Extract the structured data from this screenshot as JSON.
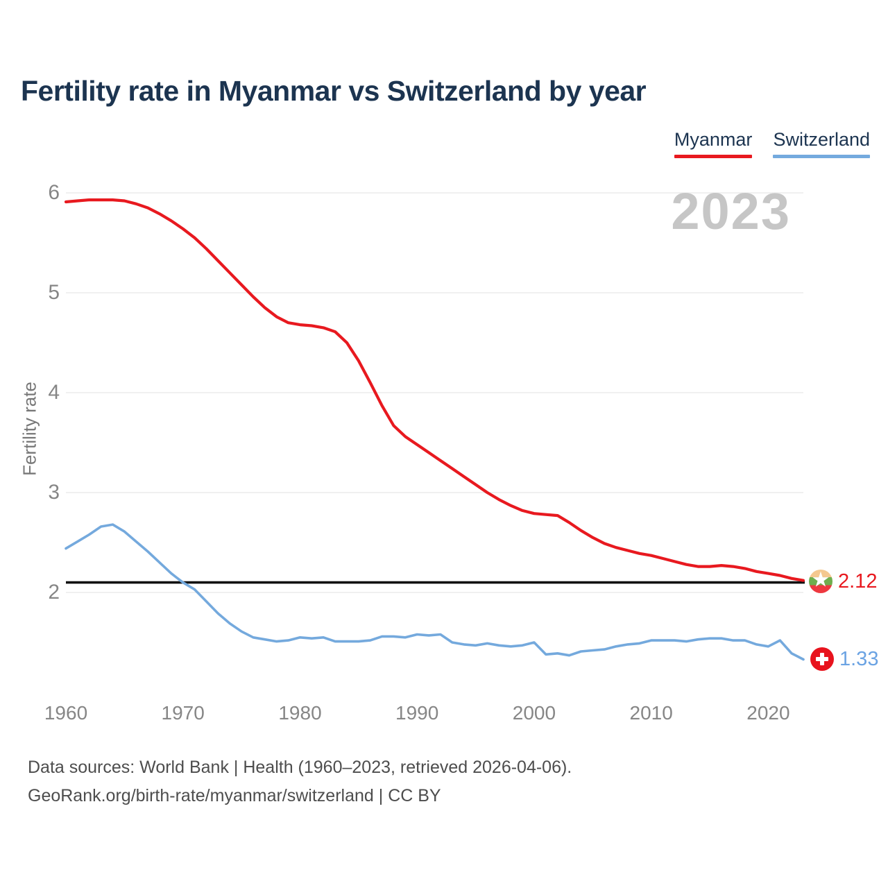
{
  "title": "Fertility rate in Myanmar vs Switzerland by year",
  "watermark": "2023",
  "legend": {
    "items": [
      {
        "label": "Myanmar",
        "color": "#e8191f"
      },
      {
        "label": "Switzerland",
        "color": "#74aade"
      }
    ]
  },
  "y_axis": {
    "title": "Fertility rate",
    "ticks": [
      2,
      3,
      4,
      5,
      6
    ]
  },
  "x_axis": {
    "ticks": [
      1960,
      1970,
      1980,
      1990,
      2000,
      2010,
      2020
    ]
  },
  "reference_line": {
    "value": 2.1,
    "color": "#111111"
  },
  "end_labels": {
    "myanmar": {
      "value": "2.12",
      "flag": "myanmar-flag-icon",
      "color": "#e8191f"
    },
    "switzerland": {
      "value": "1.33",
      "flag": "switzerland-flag-icon",
      "color": "#6ba3e3"
    }
  },
  "footer": {
    "line1": "Data sources: World Bank | Health (1960–2023, retrieved 2026-04-06).",
    "line2": "GeoRank.org/birth-rate/myanmar/switzerland | CC BY"
  },
  "chart_data": {
    "type": "line",
    "title": "Fertility rate in Myanmar vs Switzerland by year",
    "xlabel": "",
    "ylabel": "Fertility rate",
    "xlim": [
      1960,
      2023
    ],
    "ylim": [
      1.1,
      6.15
    ],
    "grid": "horizontal",
    "legend_position": "top-right",
    "reference_value": 2.1,
    "x": [
      1960,
      1961,
      1962,
      1963,
      1964,
      1965,
      1966,
      1967,
      1968,
      1969,
      1970,
      1971,
      1972,
      1973,
      1974,
      1975,
      1976,
      1977,
      1978,
      1979,
      1980,
      1981,
      1982,
      1983,
      1984,
      1985,
      1986,
      1987,
      1988,
      1989,
      1990,
      1991,
      1992,
      1993,
      1994,
      1995,
      1996,
      1997,
      1998,
      1999,
      2000,
      2001,
      2002,
      2003,
      2004,
      2005,
      2006,
      2007,
      2008,
      2009,
      2010,
      2011,
      2012,
      2013,
      2014,
      2015,
      2016,
      2017,
      2018,
      2019,
      2020,
      2021,
      2022,
      2023
    ],
    "series": [
      {
        "name": "Myanmar",
        "color": "#e8191f",
        "values": [
          5.91,
          5.92,
          5.93,
          5.93,
          5.93,
          5.92,
          5.89,
          5.85,
          5.79,
          5.72,
          5.64,
          5.55,
          5.44,
          5.32,
          5.2,
          5.08,
          4.96,
          4.85,
          4.76,
          4.7,
          4.68,
          4.67,
          4.65,
          4.61,
          4.5,
          4.32,
          4.1,
          3.87,
          3.67,
          3.56,
          3.48,
          3.4,
          3.32,
          3.24,
          3.16,
          3.08,
          3.0,
          2.93,
          2.87,
          2.82,
          2.79,
          2.78,
          2.77,
          2.7,
          2.62,
          2.55,
          2.49,
          2.45,
          2.42,
          2.39,
          2.37,
          2.34,
          2.31,
          2.28,
          2.26,
          2.26,
          2.27,
          2.26,
          2.24,
          2.21,
          2.19,
          2.17,
          2.14,
          2.12
        ]
      },
      {
        "name": "Switzerland",
        "color": "#74a9dd",
        "values": [
          2.44,
          2.51,
          2.58,
          2.66,
          2.68,
          2.61,
          2.51,
          2.41,
          2.3,
          2.19,
          2.1,
          2.03,
          1.91,
          1.79,
          1.69,
          1.61,
          1.55,
          1.53,
          1.51,
          1.52,
          1.55,
          1.54,
          1.55,
          1.51,
          1.51,
          1.51,
          1.52,
          1.56,
          1.56,
          1.55,
          1.58,
          1.57,
          1.58,
          1.5,
          1.48,
          1.47,
          1.49,
          1.47,
          1.46,
          1.47,
          1.5,
          1.38,
          1.39,
          1.37,
          1.41,
          1.42,
          1.43,
          1.46,
          1.48,
          1.49,
          1.52,
          1.52,
          1.52,
          1.51,
          1.53,
          1.54,
          1.54,
          1.52,
          1.52,
          1.48,
          1.46,
          1.52,
          1.39,
          1.33
        ]
      }
    ]
  }
}
